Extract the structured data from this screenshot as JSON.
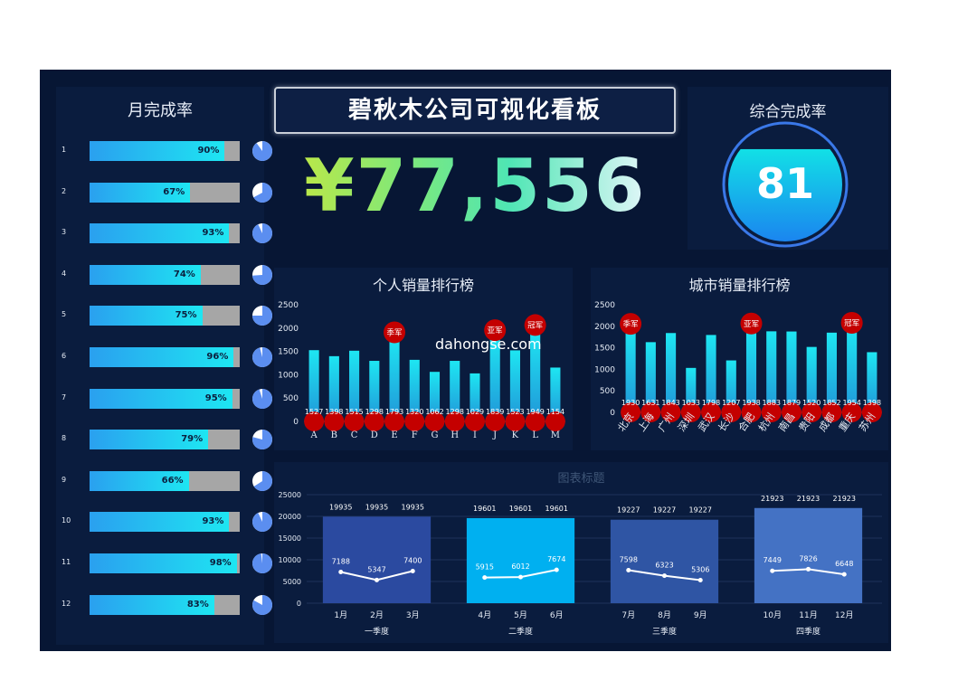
{
  "header": {
    "title": "碧秋木公司可视化看板",
    "total": "¥77,556"
  },
  "monthly": {
    "title": "月完成率",
    "rows": [
      {
        "num": "1",
        "value": 90,
        "label": "90%"
      },
      {
        "num": "2",
        "value": 67,
        "label": "67%"
      },
      {
        "num": "3",
        "value": 93,
        "label": "93%"
      },
      {
        "num": "4",
        "value": 74,
        "label": "74%"
      },
      {
        "num": "5",
        "value": 75,
        "label": "75%"
      },
      {
        "num": "6",
        "value": 96,
        "label": "96%"
      },
      {
        "num": "7",
        "value": 95,
        "label": "95%"
      },
      {
        "num": "8",
        "value": 79,
        "label": "79%"
      },
      {
        "num": "9",
        "value": 66,
        "label": "66%"
      },
      {
        "num": "10",
        "value": 93,
        "label": "93%"
      },
      {
        "num": "11",
        "value": 98,
        "label": "98%"
      },
      {
        "num": "12",
        "value": 83,
        "label": "83%"
      }
    ]
  },
  "overall": {
    "title": "综合完成率",
    "value": "81",
    "fraction": 0.81
  },
  "watermark": "dahongse.com",
  "colors": {
    "background": "#071634",
    "panel": "#0a1c3e",
    "bar_top": "#1ee6f2",
    "bar_bottom": "#2196d8",
    "marker": "#c40000",
    "quarter_fills": [
      "#2b4aa0",
      "#00b0f0",
      "#2f55a4",
      "#4472c4"
    ]
  },
  "chart_data": [
    {
      "type": "bar",
      "title": "个人销量排行榜",
      "categories": [
        "A",
        "B",
        "C",
        "D",
        "E",
        "F",
        "G",
        "H",
        "I",
        "J",
        "K",
        "L",
        "M"
      ],
      "values": [
        1527,
        1398,
        1515,
        1298,
        1793,
        1320,
        1062,
        1298,
        1029,
        1839,
        1523,
        1949,
        1154
      ],
      "value_labels": [
        "1527",
        "1398",
        "1515",
        "1298",
        "1793",
        "1320",
        "1062",
        "1298",
        "1029",
        "1839",
        "1523",
        "1949",
        "1154"
      ],
      "yticks": [
        "0",
        "500",
        "1000",
        "1500",
        "2000",
        "2500"
      ],
      "ylim": [
        0,
        2500
      ],
      "badges": [
        {
          "index": 4,
          "text": "季军"
        },
        {
          "index": 9,
          "text": "亚军"
        },
        {
          "index": 11,
          "text": "冠军"
        }
      ]
    },
    {
      "type": "bar",
      "title": "城市销量排行榜",
      "categories": [
        "北京",
        "上海",
        "广州",
        "深圳",
        "武汉",
        "长沙",
        "合肥",
        "杭州",
        "南昌",
        "贵阳",
        "成都",
        "重庆",
        "苏州"
      ],
      "values": [
        1930,
        1631,
        1843,
        1033,
        1798,
        1207,
        1938,
        1883,
        1879,
        1520,
        1852,
        1954,
        1398
      ],
      "value_labels": [
        "1930",
        "1631",
        "1843",
        "1033",
        "1798",
        "1207",
        "1938",
        "1883",
        "1879",
        "1520",
        "1852",
        "1954",
        "1398"
      ],
      "yticks": [
        "0",
        "500",
        "1000",
        "1500",
        "2000",
        "2500"
      ],
      "ylim": [
        0,
        2500
      ],
      "badges": [
        {
          "index": 0,
          "text": "季军"
        },
        {
          "index": 6,
          "text": "亚军"
        },
        {
          "index": 11,
          "text": "冠军"
        }
      ]
    },
    {
      "type": "line",
      "title": "图表标题",
      "yticks": [
        "0",
        "5000",
        "10000",
        "15000",
        "20000",
        "25000"
      ],
      "ylim": [
        0,
        25000
      ],
      "quarters": [
        {
          "name": "一季度",
          "total": 19935,
          "total_label": "19935",
          "months": [
            "1月",
            "2月",
            "3月"
          ],
          "values": [
            7188,
            5347,
            7400
          ],
          "value_labels": [
            "7188",
            "5347",
            "7400"
          ]
        },
        {
          "name": "二季度",
          "total": 19601,
          "total_label": "19601",
          "months": [
            "4月",
            "5月",
            "6月"
          ],
          "values": [
            5915,
            6012,
            7674
          ],
          "value_labels": [
            "5915",
            "6012",
            "7674"
          ]
        },
        {
          "name": "三季度",
          "total": 19227,
          "total_label": "19227",
          "months": [
            "7月",
            "8月",
            "9月"
          ],
          "values": [
            7598,
            6323,
            5306
          ],
          "value_labels": [
            "7598",
            "6323",
            "5306"
          ]
        },
        {
          "name": "四季度",
          "total": 21923,
          "total_label": "21923",
          "months": [
            "10月",
            "11月",
            "12月"
          ],
          "values": [
            7449,
            7826,
            6648
          ],
          "value_labels": [
            "7449",
            "7826",
            "6648"
          ]
        }
      ]
    }
  ]
}
